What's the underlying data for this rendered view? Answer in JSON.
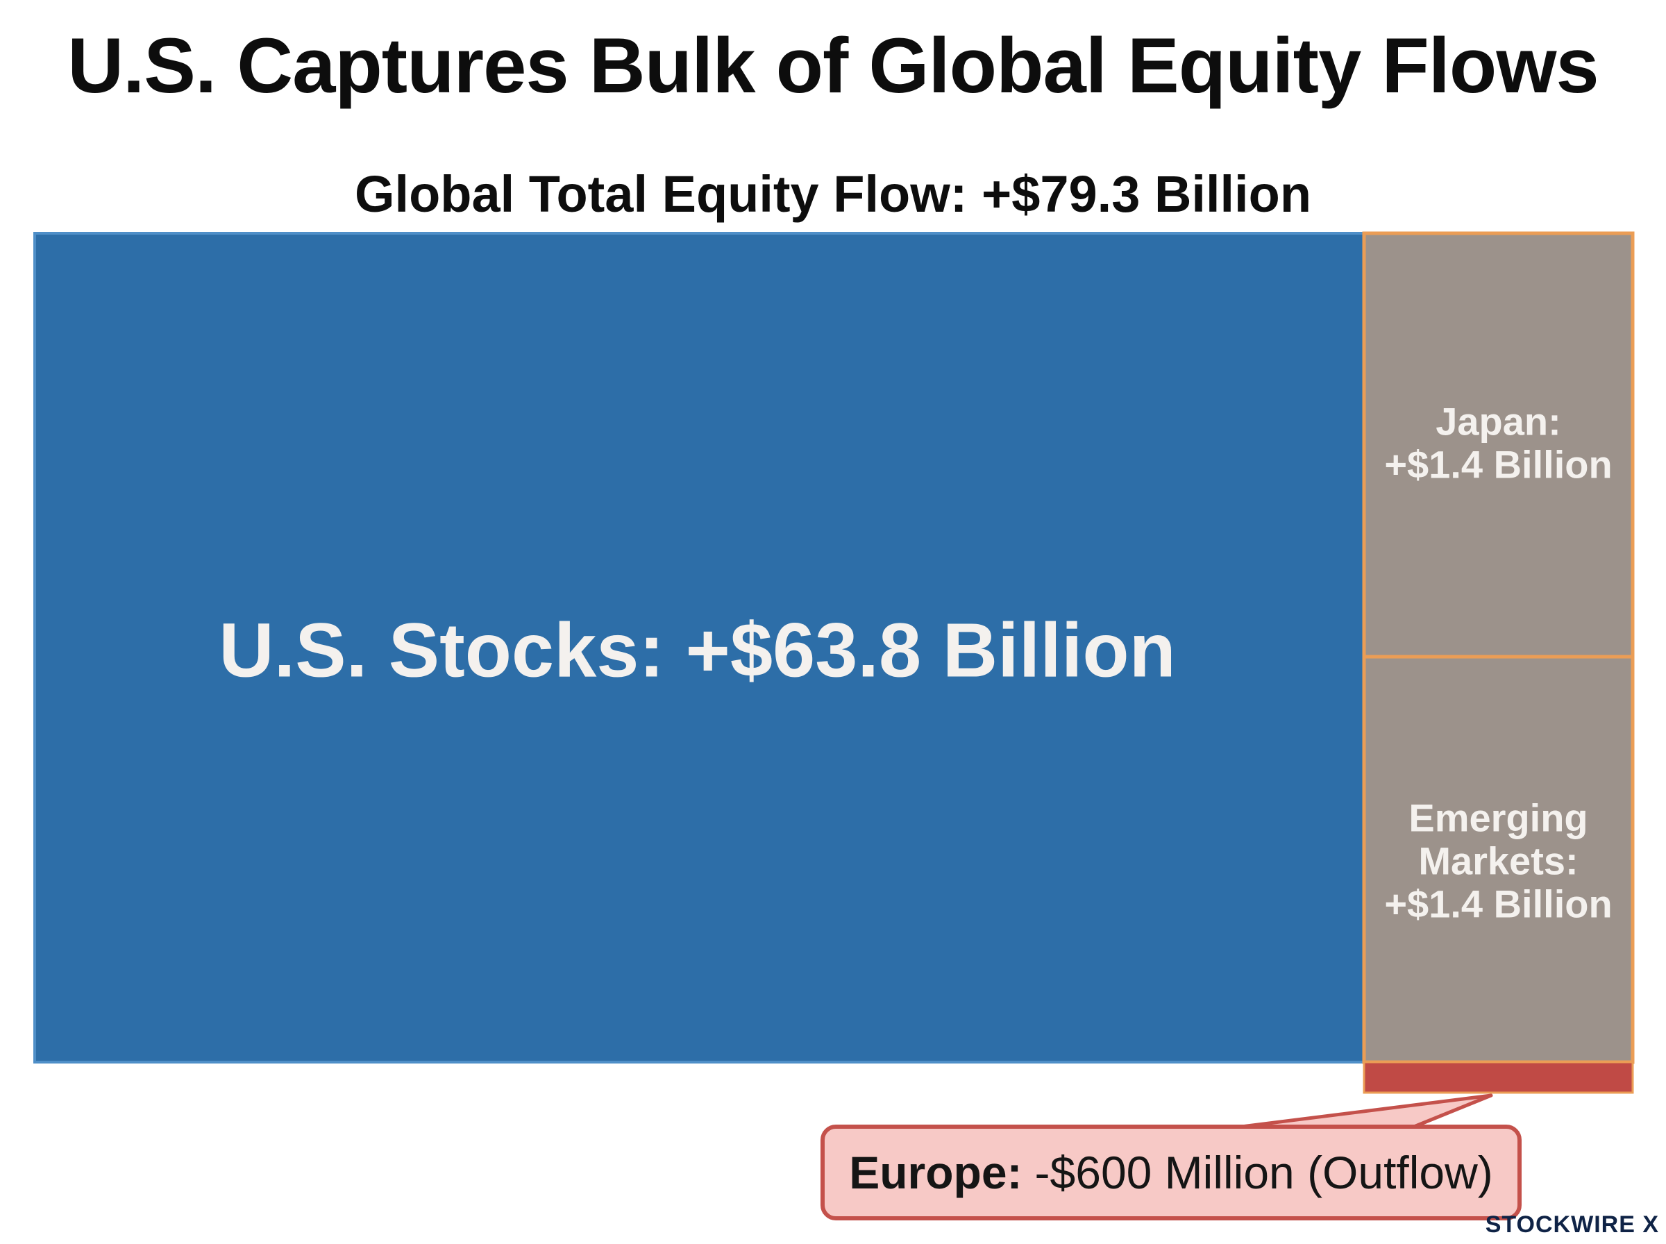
{
  "title": "U.S. Captures Bulk of Global Equity Flows",
  "subtitle": "Global Total Equity Flow: +$79.3 Billion",
  "logo_text": "STOCKWIRE X",
  "chart_data": {
    "type": "treemap",
    "title": "U.S. Captures Bulk of Global Equity Flows",
    "subtitle": "Global Total Equity Flow: +$79.3 Billion",
    "total": 79.3,
    "unit": "Billion USD",
    "segments": [
      {
        "label_lines": [
          "U.S. Stocks: +$63.8 Billion"
        ],
        "value": 63.8
      },
      {
        "label_lines": [
          "Japan:",
          "+$1.4 Billion"
        ],
        "value": 1.4
      },
      {
        "label_lines": [
          "Emerging",
          "Markets:",
          "+$1.4 Billion"
        ],
        "value": 1.4
      },
      {
        "label_bold": "Europe:",
        "label_rest": "-$600 Million (Outflow)",
        "value": -0.6
      }
    ]
  },
  "colors": {
    "us": "#2d6ea8",
    "us_border": "#4f8fc8",
    "japan": "#9c928b",
    "emerging": "#9c928b",
    "tile_border": "#eb9d55",
    "europe": "#c04a45",
    "callout_fill": "#f7c9c6",
    "callout_border": "#c4514b",
    "label": "#f4f1ee"
  }
}
